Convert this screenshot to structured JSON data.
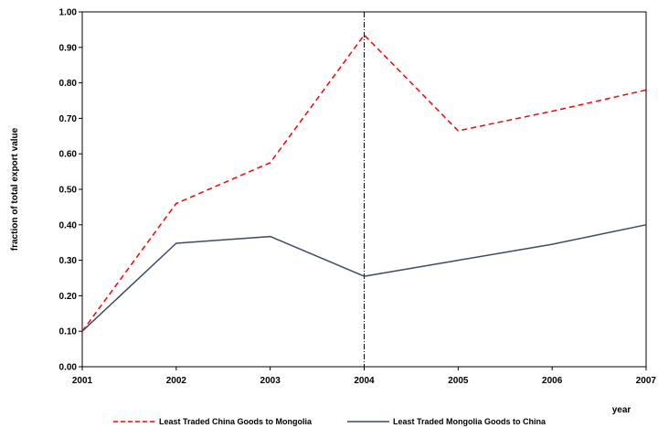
{
  "chart_data": {
    "type": "line",
    "title": "",
    "xlabel": "year",
    "ylabel": "fraction of total export value",
    "categories": [
      "2001",
      "2002",
      "2003",
      "2004",
      "2005",
      "2006",
      "2007"
    ],
    "ylim": [
      0,
      1
    ],
    "yticks": [
      "0.00",
      "0.10",
      "0.20",
      "0.30",
      "0.40",
      "0.50",
      "0.60",
      "0.70",
      "0.80",
      "0.90",
      "1.00"
    ],
    "grid": false,
    "legend_position": "bottom",
    "reference_line_x": "2004",
    "series": [
      {
        "name": "Least Traded China Goods to Mongolia",
        "values": [
          0.1,
          0.46,
          0.575,
          0.935,
          0.665,
          0.72,
          0.78
        ],
        "color": "#ff0000",
        "style": "dashed"
      },
      {
        "name": "Least Traded Mongolia Goods to China",
        "values": [
          0.1,
          0.348,
          0.367,
          0.255,
          0.3,
          0.345,
          0.4
        ],
        "color": "#3d4a66",
        "style": "solid"
      }
    ]
  }
}
